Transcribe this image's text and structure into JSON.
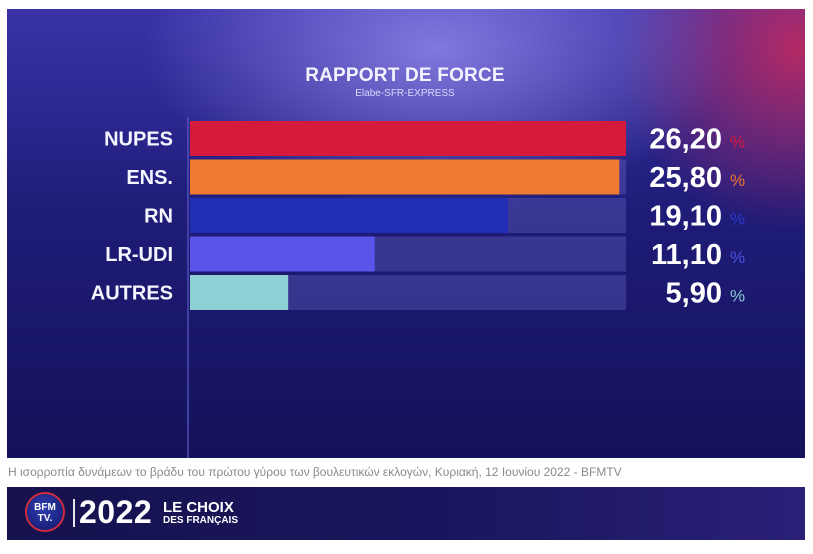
{
  "chart_data": {
    "type": "bar",
    "orientation": "horizontal",
    "title": "RAPPORT DE FORCE",
    "subtitle": "Elabe-SFR-EXPRESS",
    "categories": [
      "NUPES",
      "ENS.",
      "RN",
      "LR-UDI",
      "AUTRES"
    ],
    "values": [
      26.2,
      25.8,
      19.1,
      11.1,
      5.9
    ],
    "value_labels": [
      "26,20",
      "25,80",
      "19,10",
      "11,10",
      "5,90"
    ],
    "unit": "%",
    "xlim": [
      0,
      26.2
    ],
    "colors": [
      "#d61a3c",
      "#f07a30",
      "#1f2fb5",
      "#5a55e8",
      "#8fd0d4"
    ],
    "unit_colors": [
      "#d61a3c",
      "#f07a30",
      "#2a3bd0",
      "#4a52e0",
      "#8fd0d4"
    ],
    "legend": "none",
    "grid": false
  },
  "caption": "Η ισορροπία δυνάμεων το βράδυ του πρώτου γύρου των βουλευτικών εκλογών, Κυριακή, 12 Ιουνίου 2022 - BFMTV",
  "banner": {
    "logo_line1": "BFM",
    "logo_line2": "TV.",
    "year": "2022",
    "tagline_top": "LE CHOIX",
    "tagline_bottom": "DES FRANÇAIS"
  }
}
